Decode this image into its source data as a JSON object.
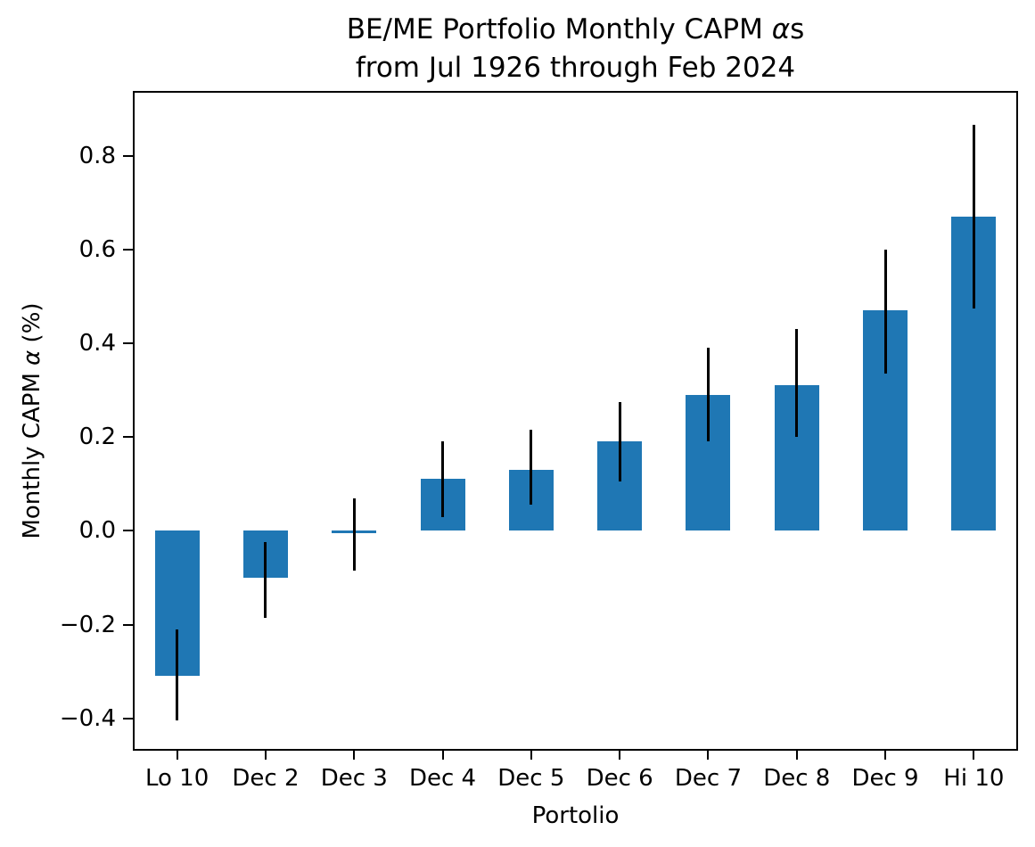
{
  "figure": {
    "title_line1_prefix": "BE/ME Portfolio Monthly CAPM ",
    "title_alpha": "α",
    "title_line1_suffix": "s",
    "title_line2": "from Jul 1926 through Feb 2024",
    "ylabel_prefix": "Monthly CAPM ",
    "ylabel_alpha": "α",
    "ylabel_suffix": " (%)",
    "xlabel": "Portolio"
  },
  "chart_data": {
    "type": "bar",
    "title": "BE/ME Portfolio Monthly CAPM αs\nfrom Jul 1926 through Feb 2024",
    "xlabel": "Portolio",
    "ylabel": "Monthly CAPM α (%)",
    "categories": [
      "Lo 10",
      "Dec 2",
      "Dec 3",
      "Dec 4",
      "Dec 5",
      "Dec 6",
      "Dec 7",
      "Dec 8",
      "Dec 9",
      "Hi 10"
    ],
    "values": [
      -0.31,
      -0.1,
      -0.005,
      0.11,
      0.13,
      0.19,
      0.29,
      0.31,
      0.47,
      0.67
    ],
    "error_bars": {
      "low": [
        -0.405,
        -0.185,
        -0.085,
        0.03,
        0.055,
        0.105,
        0.19,
        0.2,
        0.335,
        0.475
      ],
      "high": [
        -0.21,
        -0.025,
        0.07,
        0.19,
        0.215,
        0.275,
        0.39,
        0.43,
        0.6,
        0.865
      ]
    },
    "yticks": [
      0.8,
      0.6,
      0.4,
      0.2,
      0.0,
      -0.2,
      -0.4
    ],
    "ytick_labels": [
      "0.8",
      "0.6",
      "0.4",
      "0.2",
      "0.0",
      "−0.2",
      "−0.4"
    ],
    "ylim": [
      -0.469,
      0.938
    ],
    "grid": false,
    "legend": null,
    "bar_color": "#1f77b4",
    "error_color": "#000000"
  }
}
